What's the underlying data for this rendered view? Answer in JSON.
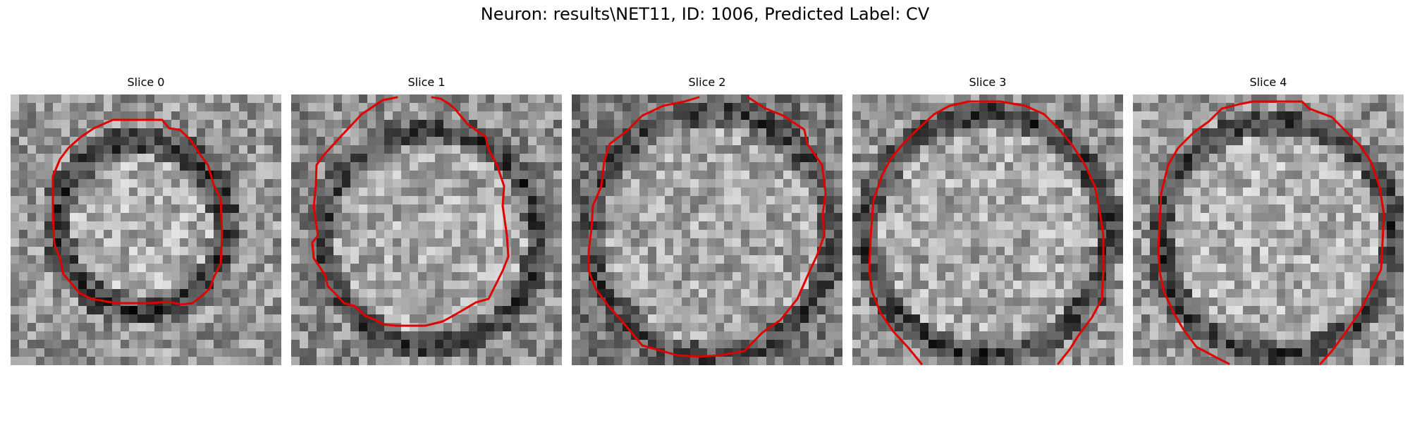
{
  "figure": {
    "title": "Neuron: results\\NET11, ID: 1006, Predicted Label: CV",
    "contour_color": "#e00000",
    "colormap": "gray"
  },
  "slices": [
    {
      "label": "Slice 0"
    },
    {
      "label": "Slice 1"
    },
    {
      "label": "Slice 2"
    },
    {
      "label": "Slice 3"
    },
    {
      "label": "Slice 4"
    }
  ]
}
